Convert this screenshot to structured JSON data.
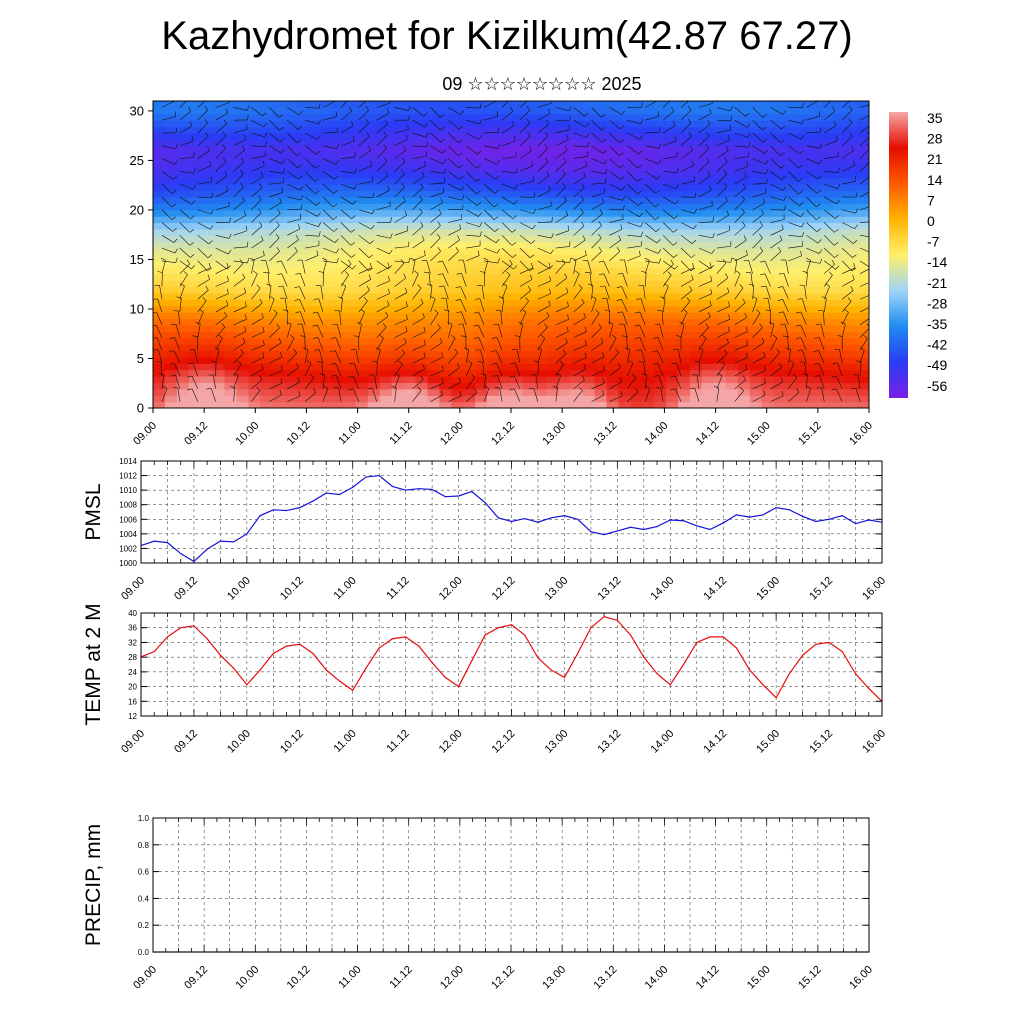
{
  "title": "Kazhydromet for Kizilkum(42.87 67.27)",
  "subtitle": "09 ☆☆☆☆☆☆☆☆ 2025",
  "time_ticks": [
    "09.00",
    "09.12",
    "10.00",
    "10.12",
    "11.00",
    "11.12",
    "12.00",
    "12.12",
    "13.00",
    "13.12",
    "14.00",
    "14.12",
    "15.00",
    "15.12",
    "16.00"
  ],
  "chart_data": [
    {
      "type": "heatmap",
      "name": "vertical cross-section",
      "ylabel": "",
      "ylim": [
        0,
        31
      ],
      "y_ticks": [
        "0",
        "5",
        "10",
        "15",
        "20",
        "25",
        "30"
      ],
      "colorbar_labels": [
        "35",
        "28",
        "21",
        "14",
        "7",
        "0",
        "-7",
        "-14",
        "-21",
        "-28",
        "-35",
        "-42",
        "-49",
        "-56"
      ],
      "colors": [
        "#7a1fe6",
        "#2a3cf5",
        "#1f8cf0",
        "#9fd4f7",
        "#ffef6b",
        "#ffb300",
        "#ff5a00",
        "#e60d00",
        "#f4a6a6"
      ],
      "temperature_profile": {
        "height": [
          0,
          3,
          6,
          9,
          12,
          14,
          16,
          18,
          20,
          22,
          24,
          26,
          28,
          30
        ],
        "value": [
          28,
          22,
          14,
          6,
          -6,
          -10,
          -14,
          -21,
          -35,
          -45,
          -52,
          -56,
          -49,
          -42
        ]
      },
      "warm_spots_time": [
        "09.12",
        "11.12",
        "12.12",
        "13.03",
        "14.12"
      ]
    },
    {
      "type": "line",
      "ylabel": "PMSL",
      "ylim": [
        1000,
        1014
      ],
      "y_ticks": [
        "1000",
        "1002",
        "1004",
        "1006",
        "1008",
        "1010",
        "1012",
        "1014"
      ],
      "color": "#1414d9",
      "x_hours": [
        0,
        3,
        6,
        9,
        12,
        15,
        18,
        21,
        24,
        27,
        30,
        33,
        36,
        39,
        42,
        45,
        48,
        51,
        54,
        57,
        60,
        63,
        66,
        69,
        72,
        75,
        78,
        81,
        84,
        87,
        90,
        93,
        96,
        99,
        102,
        105,
        108,
        111,
        114,
        117,
        120,
        123,
        126,
        129,
        132,
        135,
        138,
        141,
        144,
        147,
        150,
        153,
        156,
        159,
        162,
        165,
        168
      ],
      "values": [
        1002.4,
        1003.0,
        1002.8,
        1001.3,
        1000.2,
        1001.9,
        1003.0,
        1002.9,
        1004.0,
        1006.5,
        1007.3,
        1007.2,
        1007.6,
        1008.5,
        1009.6,
        1009.4,
        1010.4,
        1011.8,
        1012.0,
        1010.5,
        1010.0,
        1010.2,
        1010.1,
        1009.1,
        1009.2,
        1009.8,
        1008.3,
        1006.2,
        1005.7,
        1006.1,
        1005.6,
        1006.2,
        1006.5,
        1006.0,
        1004.3,
        1003.9,
        1004.4,
        1004.9,
        1004.6,
        1005.0,
        1005.9,
        1005.8,
        1005.1,
        1004.6,
        1005.5,
        1006.6,
        1006.3,
        1006.6,
        1007.6,
        1007.3,
        1006.4,
        1005.7,
        1006.0,
        1006.5,
        1005.4,
        1005.9,
        1005.6
      ]
    },
    {
      "type": "line",
      "ylabel": "TEMP at 2 M",
      "ylim": [
        12,
        40
      ],
      "y_ticks": [
        "12",
        "16",
        "20",
        "24",
        "28",
        "32",
        "36",
        "40"
      ],
      "color": "#e60d0d",
      "x_hours": [
        0,
        3,
        6,
        9,
        12,
        15,
        18,
        21,
        24,
        27,
        30,
        33,
        36,
        39,
        42,
        45,
        48,
        51,
        54,
        57,
        60,
        63,
        66,
        69,
        72,
        75,
        78,
        81,
        84,
        87,
        90,
        93,
        96,
        99,
        102,
        105,
        108,
        111,
        114,
        117,
        120,
        123,
        126,
        129,
        132,
        135,
        138,
        141,
        144,
        147,
        150,
        153,
        156,
        159,
        162,
        165,
        168
      ],
      "values": [
        28.1,
        29.5,
        33.5,
        36.0,
        36.5,
        33.0,
        28.5,
        25.0,
        20.5,
        24.5,
        29.0,
        31.0,
        31.5,
        29.0,
        24.5,
        21.5,
        19.0,
        25.0,
        30.5,
        33.0,
        33.5,
        31.0,
        26.5,
        22.5,
        20.0,
        27.0,
        34.0,
        36.0,
        36.8,
        34.0,
        27.8,
        24.5,
        22.5,
        29.0,
        36.0,
        39.0,
        38.0,
        34.0,
        28.0,
        23.5,
        20.5,
        26.0,
        32.0,
        33.5,
        33.5,
        30.5,
        24.5,
        20.5,
        17.0,
        23.5,
        28.5,
        31.5,
        32.0,
        29.5,
        23.5,
        19.5,
        16.0
      ]
    },
    {
      "type": "line",
      "ylabel": "PRECIP, mm",
      "ylim": [
        0,
        1
      ],
      "y_ticks": [
        "0.0",
        "0.2",
        "0.4",
        "0.6",
        "0.8",
        "1.0"
      ],
      "color": "#1a8c1a",
      "x_hours": [
        0,
        168
      ],
      "values": [
        0,
        0
      ]
    }
  ]
}
